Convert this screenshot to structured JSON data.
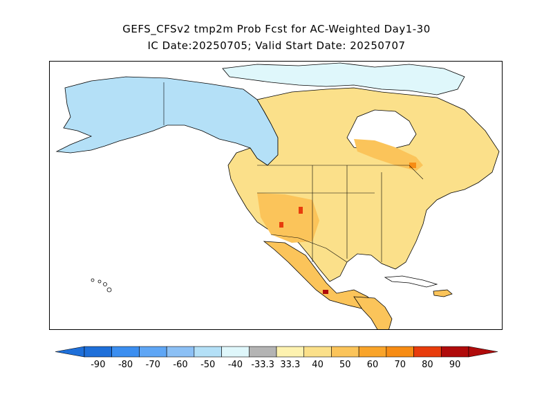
{
  "title": {
    "line1": "GEFS_CFSv2 tmp2m Prob Fcst for AC-Weighted Day1-30",
    "line2": "IC Date:20250705; Valid Start Date: 20250707"
  },
  "colorbar": {
    "bins": [
      {
        "label": "-90",
        "color": "#1e6fd9"
      },
      {
        "label": "-80",
        "color": "#3b8ef0"
      },
      {
        "label": "-70",
        "color": "#5fa6f5"
      },
      {
        "label": "-60",
        "color": "#8cc0f5"
      },
      {
        "label": "-50",
        "color": "#b4e0f7"
      },
      {
        "label": "-40",
        "color": "#dff7fb"
      },
      {
        "label": "-33.3",
        "color": "#b4b4b4"
      },
      {
        "label": "33.3",
        "color": "#fdf2b0"
      },
      {
        "label": "40",
        "color": "#fbe08a"
      },
      {
        "label": "50",
        "color": "#fbc45a"
      },
      {
        "label": "60",
        "color": "#f9a42a"
      },
      {
        "label": "70",
        "color": "#f78c14"
      },
      {
        "label": "80",
        "color": "#e83c0c"
      },
      {
        "label": "90",
        "color": "#b00b0b"
      }
    ],
    "low_color": "#1e6fd9",
    "high_color": "#b00b0b"
  },
  "map": {
    "region": "North America",
    "colors": {
      "cold_light": "#b4e0f7",
      "cold_pale": "#dff7fb",
      "warm_pale": "#fdf2b0",
      "warm_light": "#fbe08a",
      "warm_mid": "#fbc45a",
      "warm_high": "#f9a42a",
      "hot": "#e83c0c"
    }
  }
}
